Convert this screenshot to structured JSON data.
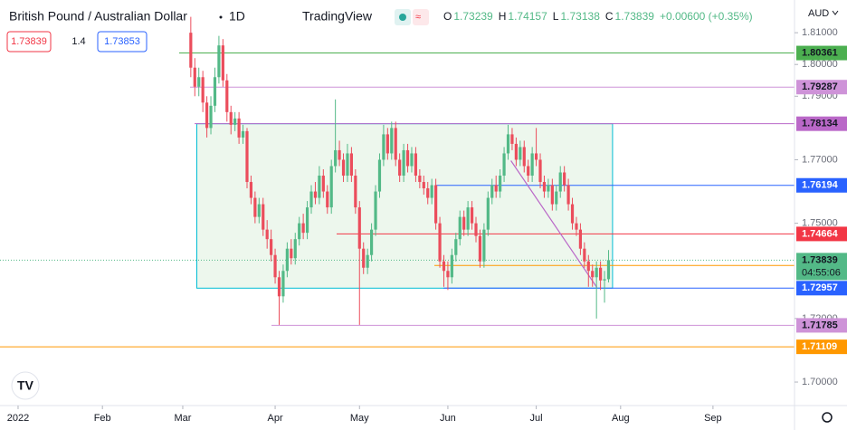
{
  "chart_data": {
    "type": "candlestick",
    "symbol": "British Pound / Australian Dollar",
    "interval": "1D",
    "source": "TradingView",
    "ohlc_letters": [
      "O",
      "H",
      "L",
      "C"
    ],
    "ohlc_values": [
      1.73239,
      1.74157,
      1.73138,
      1.73839
    ],
    "change_label": "+0.00600 (+0.35%)",
    "sell_price": "1.73839",
    "spread": "1.4",
    "buy_price": "1.73853",
    "currency": "AUD",
    "countdown": "04:55:06",
    "colors": {
      "up": "#53b987",
      "down": "#eb4d5c"
    },
    "xlim": [
      -4.5,
      193.3
    ],
    "xticks": [
      {
        "value": 0,
        "label": "2022"
      },
      {
        "value": 21,
        "label": "Feb"
      },
      {
        "value": 41,
        "label": "Mar"
      },
      {
        "value": 64,
        "label": "Apr"
      },
      {
        "value": 85,
        "label": "May"
      },
      {
        "value": 107,
        "label": "Jun"
      },
      {
        "value": 129,
        "label": "Jul"
      },
      {
        "value": 150,
        "label": "Aug"
      },
      {
        "value": 173,
        "label": "Sep"
      }
    ],
    "ylim": [
      1.6926,
      1.8203
    ],
    "yticks": [
      {
        "value": 1.81,
        "label": "1.81000"
      },
      {
        "value": 1.8,
        "label": "1.80000"
      },
      {
        "value": 1.79,
        "label": "1.79000"
      },
      {
        "value": 1.77,
        "label": "1.77000"
      },
      {
        "value": 1.75,
        "label": "1.75000"
      },
      {
        "value": 1.72,
        "label": "1.72000"
      },
      {
        "value": 1.7,
        "label": "1.70000"
      }
    ],
    "x": [
      43,
      44,
      45,
      46,
      47,
      48,
      49,
      50,
      51,
      52,
      53,
      54,
      55,
      56,
      57,
      58,
      59,
      60,
      61,
      62,
      63,
      64,
      65,
      66,
      67,
      68,
      69,
      70,
      71,
      72,
      73,
      74,
      75,
      76,
      77,
      78,
      79,
      80,
      81,
      82,
      83,
      84,
      85,
      86,
      87,
      88,
      89,
      90,
      91,
      92,
      93,
      94,
      95,
      96,
      97,
      98,
      99,
      100,
      101,
      102,
      103,
      104,
      105,
      106,
      107,
      108,
      109,
      110,
      111,
      112,
      113,
      114,
      115,
      116,
      117,
      118,
      119,
      120,
      121,
      122,
      123,
      124,
      125,
      126,
      127,
      128,
      129,
      130,
      131,
      132,
      133,
      134,
      135,
      136,
      137,
      138,
      139,
      140,
      141,
      142,
      143,
      144,
      145,
      146,
      147
    ],
    "open": [
      1.81,
      1.799,
      1.793,
      1.796,
      1.788,
      1.78,
      1.787,
      1.796,
      1.806,
      1.795,
      1.785,
      1.781,
      1.783,
      1.777,
      1.779,
      1.763,
      1.758,
      1.752,
      1.756,
      1.748,
      1.745,
      1.74,
      1.733,
      1.727,
      1.735,
      1.742,
      1.739,
      1.745,
      1.75,
      1.747,
      1.755,
      1.76,
      1.758,
      1.765,
      1.76,
      1.755,
      1.768,
      1.773,
      1.77,
      1.765,
      1.772,
      1.765,
      1.755,
      1.742,
      1.736,
      1.74,
      1.748,
      1.76,
      1.77,
      1.778,
      1.772,
      1.78,
      1.77,
      1.765,
      1.773,
      1.768,
      1.772,
      1.765,
      1.763,
      1.761,
      1.758,
      1.762,
      1.75,
      1.738,
      1.735,
      1.733,
      1.74,
      1.745,
      1.752,
      1.748,
      1.755,
      1.75,
      1.746,
      1.738,
      1.748,
      1.758,
      1.762,
      1.76,
      1.765,
      1.772,
      1.778,
      1.775,
      1.77,
      1.774,
      1.768,
      1.765,
      1.772,
      1.77,
      1.763,
      1.76,
      1.762,
      1.756,
      1.76,
      1.766,
      1.762,
      1.756,
      1.75,
      1.748,
      1.742,
      1.738,
      1.735,
      1.733,
      1.736,
      1.732,
      1.73239
    ],
    "high": [
      1.815,
      1.802,
      1.799,
      1.798,
      1.79,
      1.79,
      1.799,
      1.809,
      1.808,
      1.797,
      1.787,
      1.785,
      1.785,
      1.781,
      1.78,
      1.765,
      1.76,
      1.758,
      1.758,
      1.751,
      1.748,
      1.742,
      1.735,
      1.737,
      1.744,
      1.745,
      1.747,
      1.752,
      1.753,
      1.757,
      1.762,
      1.763,
      1.768,
      1.767,
      1.762,
      1.77,
      1.789,
      1.776,
      1.772,
      1.775,
      1.774,
      1.767,
      1.757,
      1.744,
      1.742,
      1.75,
      1.762,
      1.772,
      1.781,
      1.78,
      1.782,
      1.782,
      1.772,
      1.775,
      1.775,
      1.774,
      1.774,
      1.767,
      1.765,
      1.763,
      1.764,
      1.764,
      1.752,
      1.74,
      1.738,
      1.742,
      1.747,
      1.754,
      1.754,
      1.757,
      1.757,
      1.752,
      1.748,
      1.75,
      1.76,
      1.764,
      1.765,
      1.767,
      1.774,
      1.781,
      1.78,
      1.777,
      1.776,
      1.776,
      1.77,
      1.774,
      1.78,
      1.772,
      1.765,
      1.764,
      1.764,
      1.762,
      1.768,
      1.768,
      1.764,
      1.758,
      1.752,
      1.75,
      1.744,
      1.74,
      1.737,
      1.738,
      1.738,
      1.735,
      1.74157
    ],
    "low": [
      1.796,
      1.79,
      1.79,
      1.785,
      1.777,
      1.778,
      1.785,
      1.794,
      1.793,
      1.782,
      1.778,
      1.779,
      1.775,
      1.775,
      1.761,
      1.756,
      1.75,
      1.75,
      1.746,
      1.742,
      1.738,
      1.731,
      1.718,
      1.725,
      1.733,
      1.737,
      1.737,
      1.743,
      1.745,
      1.745,
      1.753,
      1.756,
      1.756,
      1.758,
      1.753,
      1.753,
      1.766,
      1.768,
      1.763,
      1.763,
      1.763,
      1.753,
      1.718,
      1.734,
      1.734,
      1.738,
      1.746,
      1.758,
      1.768,
      1.77,
      1.77,
      1.768,
      1.763,
      1.763,
      1.766,
      1.766,
      1.763,
      1.761,
      1.759,
      1.756,
      1.756,
      1.748,
      1.736,
      1.73,
      1.729,
      1.731,
      1.738,
      1.743,
      1.746,
      1.746,
      1.748,
      1.744,
      1.736,
      1.736,
      1.746,
      1.756,
      1.758,
      1.758,
      1.763,
      1.77,
      1.773,
      1.768,
      1.768,
      1.766,
      1.763,
      1.763,
      1.768,
      1.761,
      1.758,
      1.758,
      1.754,
      1.754,
      1.758,
      1.76,
      1.754,
      1.748,
      1.746,
      1.74,
      1.736,
      1.73,
      1.73,
      1.72,
      1.729,
      1.725,
      1.73138
    ],
    "close": [
      1.799,
      1.793,
      1.796,
      1.788,
      1.78,
      1.787,
      1.796,
      1.806,
      1.795,
      1.785,
      1.781,
      1.783,
      1.777,
      1.779,
      1.763,
      1.758,
      1.752,
      1.756,
      1.748,
      1.745,
      1.74,
      1.733,
      1.727,
      1.735,
      1.742,
      1.739,
      1.745,
      1.75,
      1.747,
      1.755,
      1.76,
      1.758,
      1.765,
      1.76,
      1.755,
      1.768,
      1.773,
      1.77,
      1.765,
      1.772,
      1.765,
      1.755,
      1.742,
      1.736,
      1.74,
      1.748,
      1.76,
      1.77,
      1.778,
      1.772,
      1.78,
      1.77,
      1.765,
      1.773,
      1.768,
      1.772,
      1.765,
      1.763,
      1.761,
      1.758,
      1.762,
      1.75,
      1.738,
      1.735,
      1.733,
      1.74,
      1.745,
      1.752,
      1.748,
      1.755,
      1.75,
      1.746,
      1.738,
      1.748,
      1.758,
      1.762,
      1.76,
      1.765,
      1.772,
      1.778,
      1.775,
      1.77,
      1.774,
      1.768,
      1.765,
      1.772,
      1.77,
      1.763,
      1.76,
      1.762,
      1.756,
      1.76,
      1.766,
      1.762,
      1.756,
      1.75,
      1.748,
      1.742,
      1.738,
      1.735,
      1.733,
      1.736,
      1.732,
      1.73239,
      1.73839
    ],
    "levels": [
      {
        "value": 1.80361,
        "color": "#4caf50"
      },
      {
        "value": 1.79287,
        "color": "#ce93d8"
      },
      {
        "value": 1.78134,
        "color": "#ba68c8"
      },
      {
        "value": 1.76194,
        "color": "#2962ff"
      },
      {
        "value": 1.74664,
        "color": "#f23645"
      },
      {
        "value": 1.73839,
        "color": "#53b987"
      },
      {
        "value": 1.73672,
        "color": "#ff9800"
      },
      {
        "value": 1.72957,
        "color": "#2962ff"
      },
      {
        "value": 1.71785,
        "color": "#ce93d8"
      },
      {
        "value": 1.71109,
        "color": "#ff9800"
      }
    ],
    "box": {
      "x": [
        44.5,
        148
      ],
      "y": [
        1.72957,
        1.78134
      ],
      "color": "#00bcd4"
    },
    "trend_line": {
      "x": [
        122.7,
        144.1
      ],
      "y": [
        1.7697,
        1.7298
      ],
      "color": "#ba68c8"
    }
  }
}
